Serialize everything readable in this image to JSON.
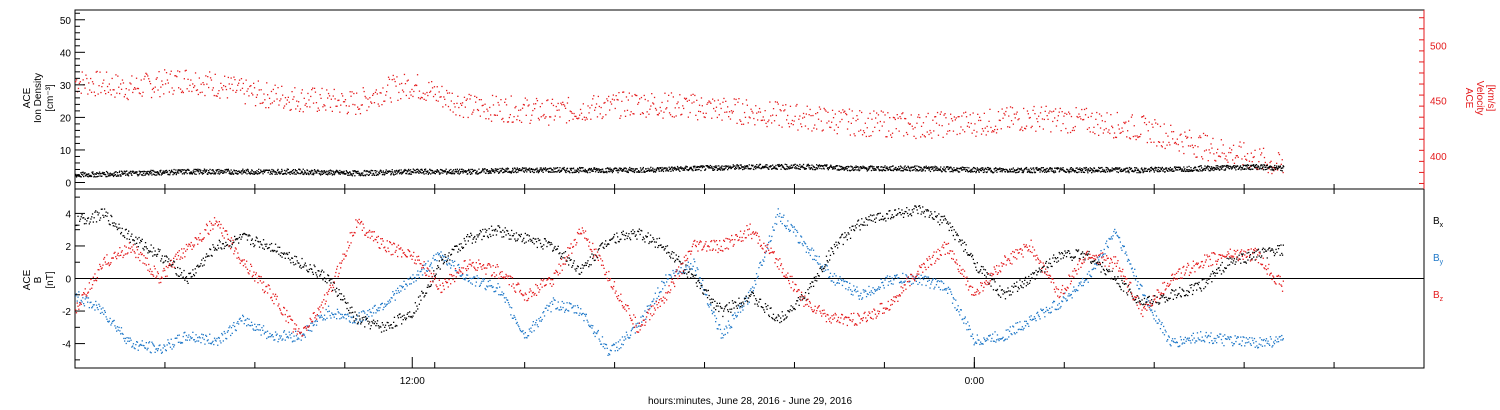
{
  "chart_data": [
    {
      "type": "scatter",
      "panel": "density-velocity",
      "title": "",
      "ylabel_left": [
        "ACE",
        "Ion Density",
        "[cm⁻³]"
      ],
      "ylabel_right": [
        "ACE",
        "Velocity",
        "[km/s]"
      ],
      "ylim_left": [
        -2,
        53
      ],
      "yticks_left": [
        0,
        10,
        20,
        30,
        40,
        50
      ],
      "ylim_right": [
        370,
        532
      ],
      "yticks_right": [
        400,
        450,
        500
      ],
      "series": [
        {
          "name": "Ion Density",
          "axis": "left",
          "color": "#000000",
          "x": [
            0,
            2,
            4,
            6,
            8,
            10,
            12,
            14,
            16,
            18,
            20,
            22,
            24,
            26,
            28,
            30,
            32,
            34,
            36,
            38,
            40,
            42,
            43
          ],
          "y": [
            2.5,
            3,
            3.5,
            3.5,
            3.5,
            3,
            3.5,
            3.5,
            4,
            4,
            4,
            4.5,
            5,
            5,
            4.5,
            4.5,
            4,
            4,
            4,
            4,
            4.5,
            5,
            4.5
          ]
        },
        {
          "name": "Velocity",
          "axis": "right",
          "color": "#e41a1c",
          "x": [
            0,
            2,
            4,
            5,
            6,
            8,
            10,
            11,
            12,
            14,
            16,
            17,
            18,
            20,
            22,
            24,
            26,
            28,
            30,
            32,
            34,
            36,
            38,
            40,
            42,
            43
          ],
          "y": [
            468,
            462,
            470,
            465,
            458,
            452,
            448,
            460,
            465,
            445,
            442,
            440,
            443,
            448,
            445,
            440,
            435,
            430,
            428,
            430,
            435,
            432,
            425,
            410,
            398,
            390
          ]
        }
      ]
    },
    {
      "type": "scatter",
      "panel": "magnetic-field",
      "title": "",
      "ylabel_left": [
        "ACE",
        "B",
        "[nT]"
      ],
      "ylim": [
        -5.5,
        5.5
      ],
      "yticks": [
        -4,
        -2,
        0,
        2,
        4
      ],
      "zero_line": true,
      "series": [
        {
          "name": "Bx",
          "label_main": "B",
          "label_sub": "x",
          "color": "#000000",
          "x": [
            0,
            1,
            2,
            3,
            4,
            5,
            6,
            7,
            8,
            9,
            10,
            11,
            12,
            13,
            14,
            15,
            16,
            17,
            18,
            19,
            20,
            21,
            22,
            23,
            24,
            25,
            26,
            27,
            28,
            29,
            30,
            31,
            32,
            33,
            34,
            35,
            36,
            37,
            38,
            39,
            40,
            41,
            42,
            43
          ],
          "y": [
            3.5,
            4,
            2.5,
            1.5,
            0,
            2,
            2.5,
            2,
            1,
            0,
            -2.5,
            -3,
            -2,
            1,
            2.5,
            3,
            2.5,
            2,
            0.5,
            2.5,
            2.8,
            2,
            0,
            -2,
            -1,
            -2.5,
            -1,
            2,
            3.5,
            4,
            4.2,
            3.5,
            1,
            -1,
            0,
            1.5,
            1.5,
            0,
            -1.5,
            -1,
            -0.5,
            1,
            1.5,
            1.8
          ]
        },
        {
          "name": "By",
          "label_main": "B",
          "label_sub": "y",
          "color": "#1f78c8",
          "x": [
            0,
            1,
            2,
            3,
            4,
            5,
            6,
            7,
            8,
            9,
            10,
            11,
            12,
            13,
            14,
            15,
            16,
            17,
            18,
            19,
            20,
            21,
            22,
            23,
            24,
            25,
            26,
            27,
            28,
            29,
            30,
            31,
            32,
            33,
            34,
            35,
            36,
            37,
            38,
            39,
            40,
            41,
            42,
            43
          ],
          "y": [
            -1,
            -2,
            -4,
            -4.3,
            -3.5,
            -3.8,
            -2.5,
            -3.5,
            -3.5,
            -2,
            -2.5,
            -1.5,
            0,
            1.5,
            0,
            -0.5,
            -3.5,
            -1.5,
            -2,
            -4.5,
            -3,
            0,
            1,
            -3.5,
            -1,
            4,
            2,
            0,
            -1,
            0,
            0,
            -0.5,
            -3.8,
            -3.5,
            -2.5,
            -1.5,
            0,
            3,
            -1,
            -4,
            -3.5,
            -3.8,
            -3.9,
            -3.8
          ]
        },
        {
          "name": "Bz",
          "label_main": "B",
          "label_sub": "z",
          "color": "#e41a1c",
          "x": [
            0,
            1,
            2,
            3,
            4,
            5,
            6,
            7,
            8,
            9,
            10,
            11,
            12,
            13,
            14,
            15,
            16,
            17,
            18,
            19,
            20,
            21,
            22,
            23,
            24,
            25,
            26,
            27,
            28,
            29,
            30,
            31,
            32,
            33,
            34,
            35,
            36,
            37,
            38,
            39,
            40,
            41,
            42,
            43
          ],
          "y": [
            -2,
            1,
            2,
            0,
            2,
            3.5,
            1,
            -1,
            -3.5,
            -1,
            3.5,
            2,
            1.5,
            -0.5,
            1,
            0.5,
            -1,
            0,
            3,
            0,
            -3,
            -1,
            2,
            2,
            3,
            1,
            -1.5,
            -2.5,
            -2.5,
            -1.5,
            0.5,
            2,
            -1,
            1,
            2,
            -1,
            1.5,
            1,
            -2,
            0,
            1,
            1.5,
            1.5,
            -0.5
          ]
        }
      ],
      "legend_placement": "right"
    }
  ],
  "x_axis": {
    "range_hours": [
      0,
      48
    ],
    "ticks": [
      {
        "hour": 12,
        "label": "12:00"
      },
      {
        "hour": 32,
        "label": "0:00"
      }
    ],
    "minor_every_hours": 3.2,
    "label": "hours:minutes, June 28, 2016 - June 29, 2016"
  }
}
